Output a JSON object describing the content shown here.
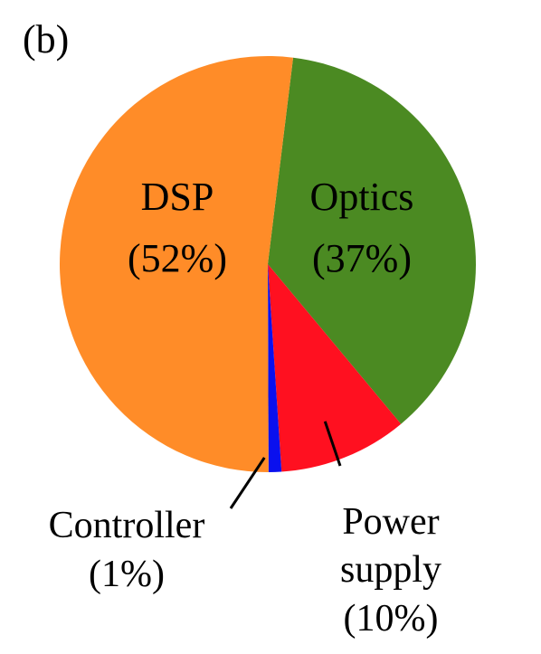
{
  "panel_label": "(b)",
  "chart_data": {
    "type": "pie",
    "start_angle_deg": 7,
    "direction": "clockwise",
    "slices": [
      {
        "name": "Optics",
        "value": 37,
        "percent_label": "(37%)",
        "color": "#4b8a22"
      },
      {
        "name": "Power",
        "name_line2": "supply",
        "value": 10,
        "percent_label": "(10%)",
        "color": "#ff1020"
      },
      {
        "name": "Controller",
        "value": 1,
        "percent_label": "(1%)",
        "color": "#0a10ee"
      },
      {
        "name": "DSP",
        "value": 52,
        "percent_label": "(52%)",
        "color": "#ff8c28"
      }
    ]
  }
}
